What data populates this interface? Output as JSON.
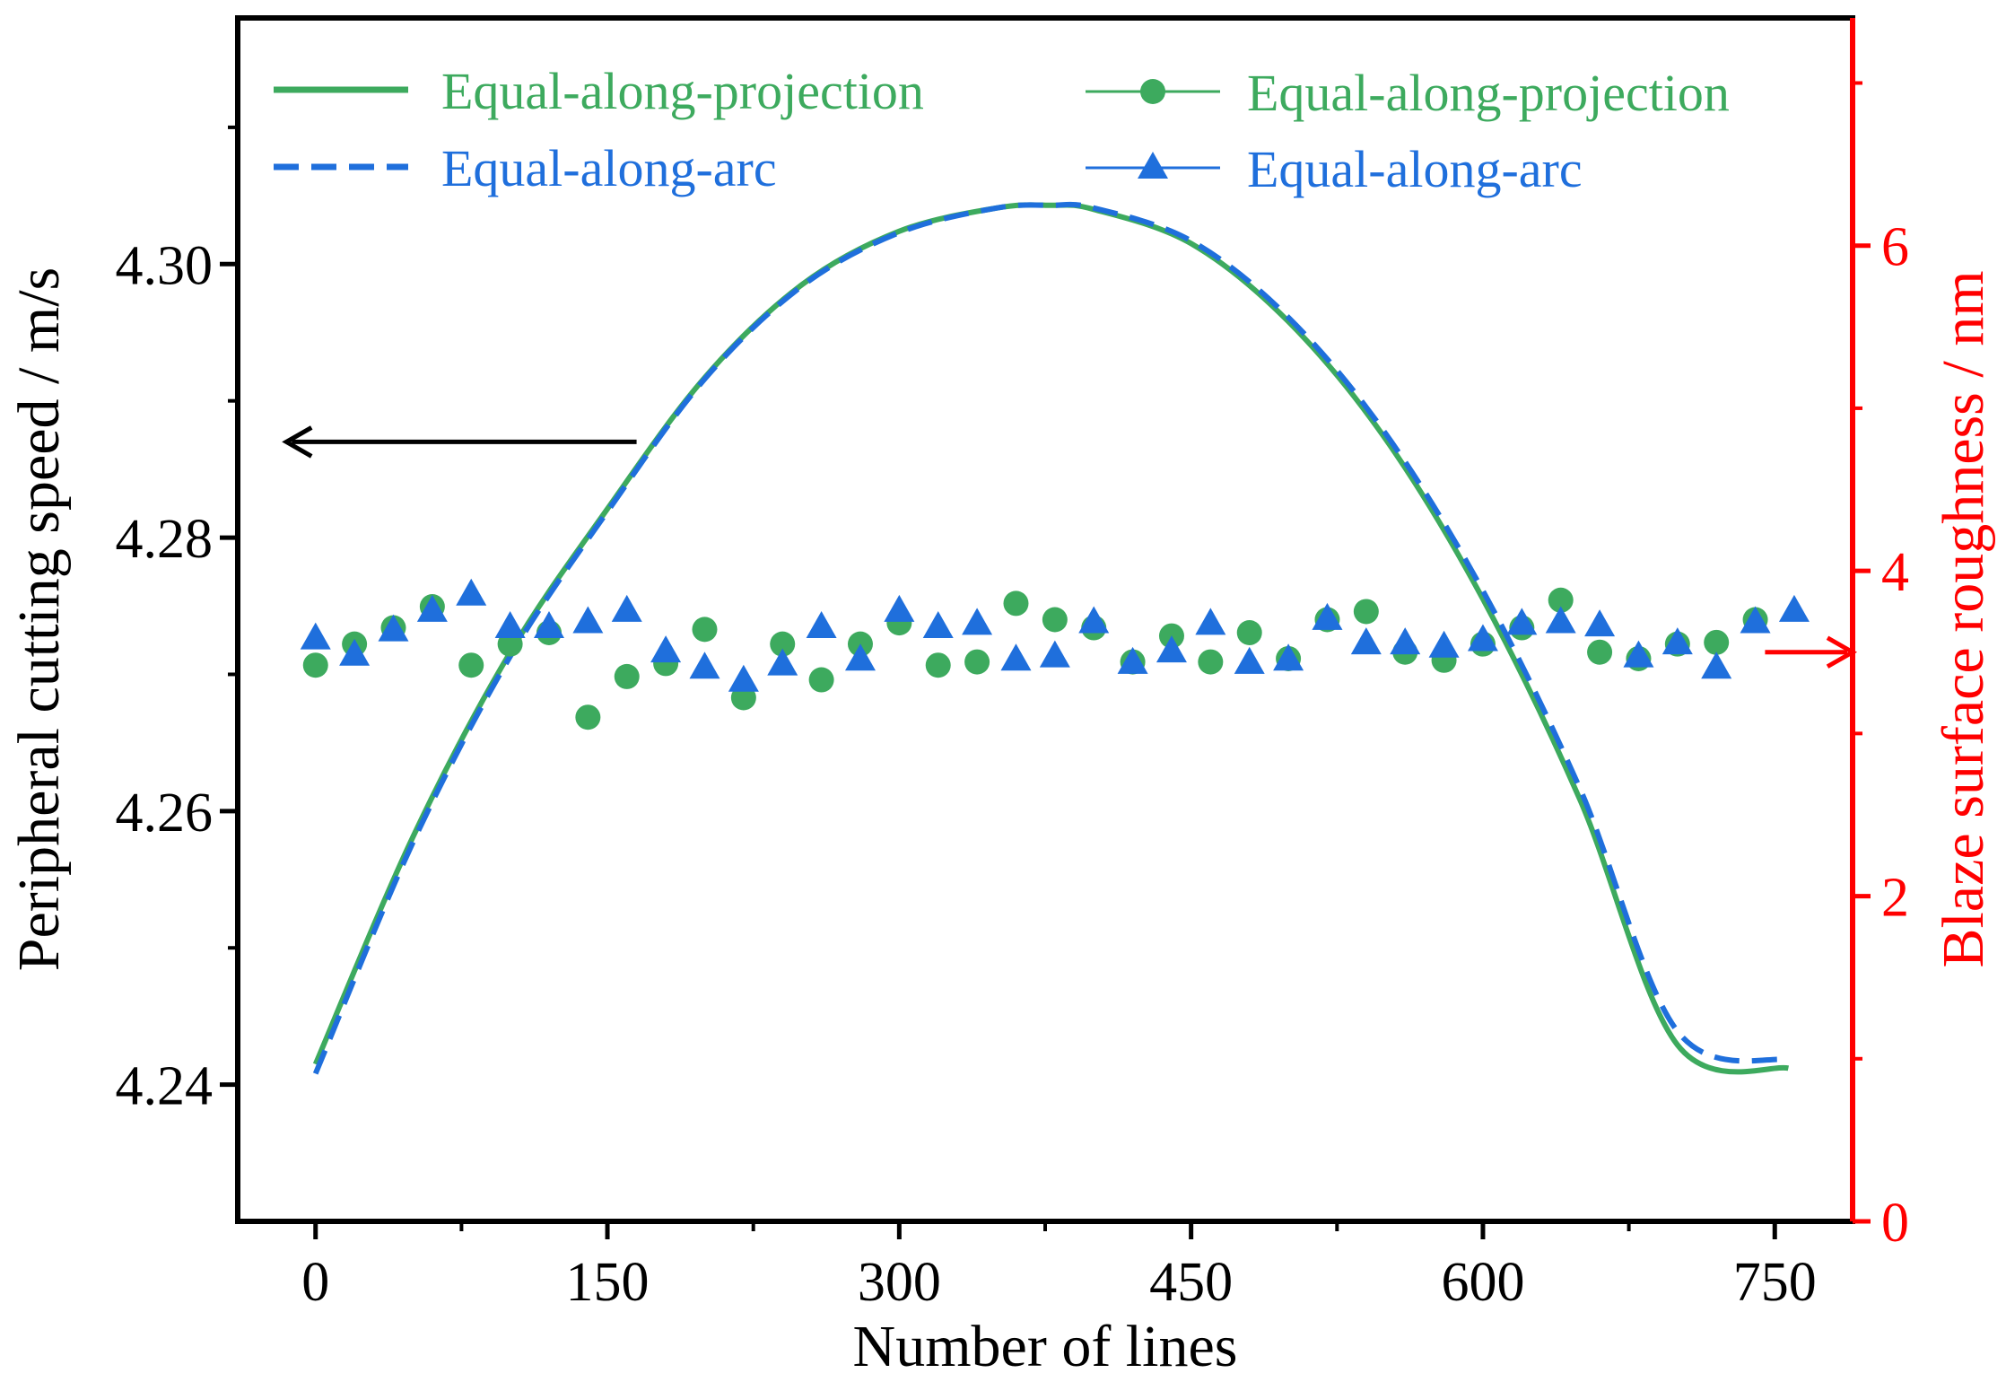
{
  "chart_data": {
    "type": "line",
    "xlabel": "Number of lines",
    "ylabel_left": "Peripheral cutting speed / m/s",
    "ylabel_right": "Blaze surface roughness / nm",
    "xlim": [
      -40,
      790
    ],
    "ylim_left": [
      4.23,
      4.318
    ],
    "ylim_right": [
      0,
      7.4
    ],
    "xticks": [
      0,
      150,
      300,
      450,
      600,
      750
    ],
    "xtick_labels": [
      "0",
      "150",
      "300",
      "450",
      "600",
      "750"
    ],
    "yticks_left": [
      4.24,
      4.26,
      4.28,
      4.3
    ],
    "ytick_labels_left": [
      "4.24",
      "4.26",
      "4.28",
      "4.30"
    ],
    "yticks_right": [
      0,
      2,
      4,
      6
    ],
    "ytick_labels_right": [
      "0",
      "2",
      "4",
      "6"
    ],
    "colors": {
      "green": "#3daa5e",
      "blue": "#1f6fdc",
      "right_axis": "#ff0000",
      "left_axis": "#000000"
    },
    "arrows": {
      "left_arrow": {
        "from_x": 165,
        "to_x": -15,
        "y_left": 4.287,
        "axis": "left"
      },
      "right_arrow": {
        "from_x": 745,
        "to_x": 790,
        "y_right": 3.5,
        "axis": "right"
      }
    },
    "legend": {
      "placement": "top",
      "entries": [
        {
          "label": "Equal-along-projection",
          "style": "solid-line",
          "color": "#3daa5e"
        },
        {
          "label": "Equal-along-arc",
          "style": "dashed-line",
          "color": "#1f6fdc"
        },
        {
          "label": "Equal-along-projection",
          "style": "line-circle",
          "color": "#3daa5e"
        },
        {
          "label": "Equal-along-arc",
          "style": "line-triangle",
          "color": "#1f6fdc"
        }
      ]
    },
    "series": [
      {
        "name": "Equal-along-projection",
        "axis": "left",
        "kind": "curve",
        "color": "#3daa5e",
        "dash": false,
        "x": [
          0,
          50,
          100,
          150,
          200,
          250,
          300,
          350,
          378,
          400,
          450,
          500,
          550,
          600,
          650,
          700,
          757
        ],
        "values": [
          4.2415,
          4.2581,
          4.2716,
          4.2821,
          4.2917,
          4.2985,
          4.3024,
          4.3041,
          4.3043,
          4.304,
          4.3015,
          4.2958,
          4.2872,
          4.2755,
          4.2608,
          4.2429,
          4.2412
        ]
      },
      {
        "name": "Equal-along-arc",
        "axis": "left",
        "kind": "curve",
        "color": "#1f6fdc",
        "dash": true,
        "x": [
          0,
          50,
          100,
          150,
          200,
          250,
          300,
          350,
          378,
          400,
          450,
          500,
          550,
          600,
          650,
          700,
          757
        ],
        "values": [
          4.2408,
          4.2577,
          4.2713,
          4.2819,
          4.2916,
          4.2984,
          4.3023,
          4.3041,
          4.3043,
          4.3041,
          4.3017,
          4.2961,
          4.2876,
          4.2761,
          4.2616,
          4.2439,
          4.2418
        ]
      },
      {
        "name": "Equal-along-projection",
        "axis": "right",
        "kind": "scatter",
        "marker": "circle",
        "color": "#3daa5e",
        "x": [
          0,
          20,
          40,
          60,
          80,
          100,
          120,
          140,
          160,
          180,
          200,
          220,
          240,
          260,
          280,
          300,
          320,
          340,
          360,
          380,
          400,
          420,
          440,
          460,
          480,
          500,
          520,
          540,
          560,
          580,
          600,
          620,
          640,
          660,
          680,
          700,
          720,
          740
        ],
        "values": [
          3.42,
          3.55,
          3.65,
          3.78,
          3.42,
          3.55,
          3.62,
          3.1,
          3.35,
          3.43,
          3.64,
          3.22,
          3.55,
          3.33,
          3.55,
          3.68,
          3.42,
          3.44,
          3.8,
          3.7,
          3.65,
          3.44,
          3.6,
          3.44,
          3.62,
          3.46,
          3.7,
          3.75,
          3.5,
          3.45,
          3.55,
          3.65,
          3.82,
          3.5,
          3.46,
          3.55,
          3.56,
          3.7
        ]
      },
      {
        "name": "Equal-along-arc",
        "axis": "right",
        "kind": "scatter",
        "marker": "triangle",
        "color": "#1f6fdc",
        "x": [
          0,
          20,
          40,
          60,
          80,
          100,
          120,
          140,
          160,
          180,
          200,
          220,
          240,
          260,
          280,
          300,
          320,
          340,
          360,
          380,
          400,
          420,
          440,
          460,
          480,
          500,
          520,
          540,
          560,
          580,
          600,
          620,
          640,
          660,
          680,
          700,
          720,
          740,
          760
        ],
        "values": [
          3.58,
          3.48,
          3.63,
          3.75,
          3.85,
          3.65,
          3.65,
          3.68,
          3.75,
          3.5,
          3.4,
          3.32,
          3.42,
          3.65,
          3.45,
          3.75,
          3.65,
          3.67,
          3.45,
          3.47,
          3.68,
          3.43,
          3.5,
          3.67,
          3.43,
          3.45,
          3.7,
          3.55,
          3.55,
          3.53,
          3.57,
          3.67,
          3.68,
          3.66,
          3.47,
          3.55,
          3.4,
          3.68,
          3.75
        ]
      }
    ]
  }
}
